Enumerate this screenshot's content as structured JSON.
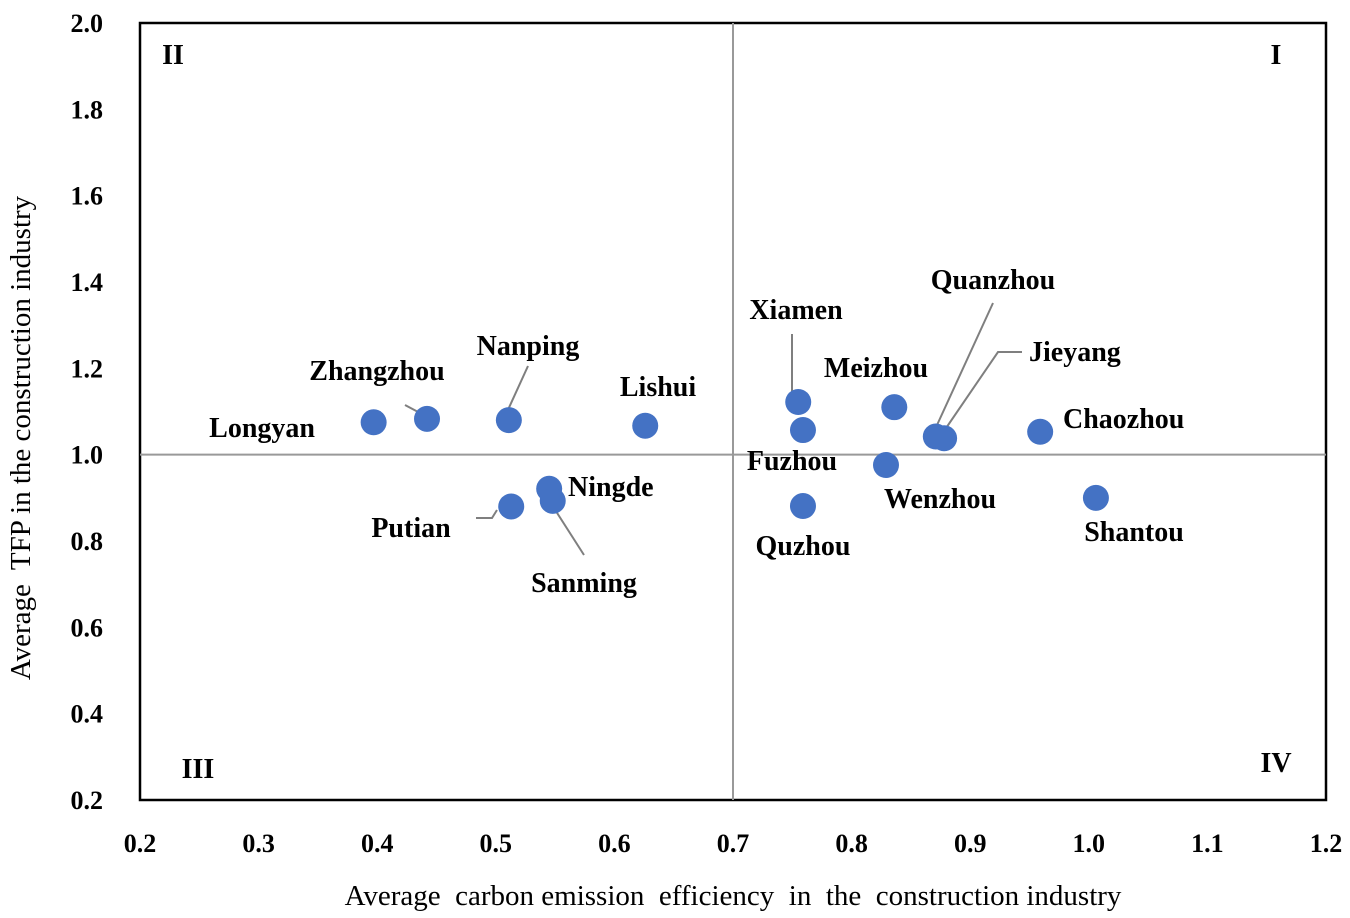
{
  "chart_data": {
    "type": "scatter",
    "title": "",
    "xlabel": "Average  carbon emission  efficiency  in  the  construction industry",
    "ylabel": "Average  TFP in the construction industry",
    "xlim": [
      0.2,
      1.2
    ],
    "ylim": [
      0.2,
      2.0
    ],
    "xticks": [
      "0.2",
      "0.3",
      "0.4",
      "0.5",
      "0.6",
      "0.7",
      "0.8",
      "0.9",
      "1.0",
      "1.1",
      "1.2"
    ],
    "yticks": [
      "0.2",
      "0.4",
      "0.6",
      "0.8",
      "1.0",
      "1.2",
      "1.4",
      "1.6",
      "1.8",
      "2.0"
    ],
    "reference_lines": {
      "x": 0.7,
      "y": 1.0
    },
    "point_color": "#4472C4",
    "quadrants": [
      {
        "label": "I",
        "position": "top-right"
      },
      {
        "label": "II",
        "position": "top-left"
      },
      {
        "label": "III",
        "position": "bottom-left"
      },
      {
        "label": "IV",
        "position": "bottom-right"
      }
    ],
    "points": [
      {
        "name": "Longyan",
        "x": 0.397,
        "y": 1.075
      },
      {
        "name": "Zhangzhou",
        "x": 0.442,
        "y": 1.083
      },
      {
        "name": "Nanping",
        "x": 0.511,
        "y": 1.08
      },
      {
        "name": "Lishui",
        "x": 0.626,
        "y": 1.067
      },
      {
        "name": "Putian",
        "x": 0.513,
        "y": 0.88
      },
      {
        "name": "Ningde",
        "x": 0.545,
        "y": 0.921
      },
      {
        "name": "Sanming",
        "x": 0.548,
        "y": 0.893
      },
      {
        "name": "Xiamen",
        "x": 0.755,
        "y": 1.122
      },
      {
        "name": "Fuzhou",
        "x": 0.759,
        "y": 1.057
      },
      {
        "name": "Quzhou",
        "x": 0.759,
        "y": 0.881
      },
      {
        "name": "Meizhou",
        "x": 0.836,
        "y": 1.11
      },
      {
        "name": "Wenzhou",
        "x": 0.829,
        "y": 0.976
      },
      {
        "name": "Quanzhou",
        "x": 0.871,
        "y": 1.042
      },
      {
        "name": "Jieyang",
        "x": 0.878,
        "y": 1.038
      },
      {
        "name": "Chaozhou",
        "x": 0.959,
        "y": 1.053
      },
      {
        "name": "Shantou",
        "x": 1.006,
        "y": 0.9
      }
    ]
  }
}
